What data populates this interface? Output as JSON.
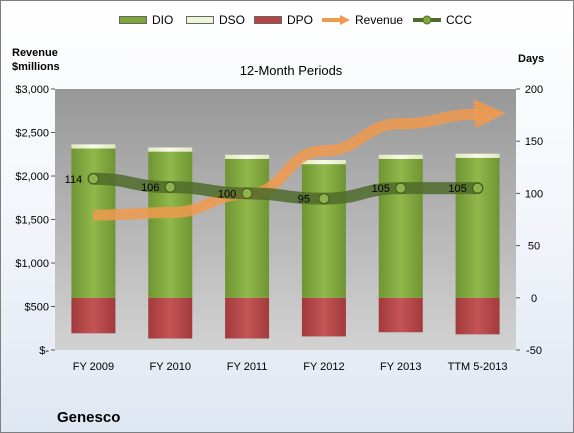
{
  "company": "Genesco",
  "chart_data": {
    "type": "bar",
    "title": "12-Month Periods",
    "left_axis_title": [
      "Revenue",
      "$millions"
    ],
    "right_axis_title": "Days",
    "categories": [
      "FY 2009",
      "FY 2010",
      "FY 2011",
      "FY 2012",
      "FY 2013",
      "TTM 5-2013"
    ],
    "left_ticks": [
      "$-",
      "$500",
      "$1,000",
      "$1,500",
      "$2,000",
      "$2,500",
      "$3,000"
    ],
    "right_ticks": [
      "-50",
      "0",
      "50",
      "100",
      "150",
      "200"
    ],
    "ylim_left": [
      0,
      3000
    ],
    "ylim_right": [
      -50,
      200
    ],
    "series": [
      {
        "name": "DIO",
        "axis": "right",
        "values": [
          143,
          140,
          133,
          128,
          133,
          134
        ],
        "color": "#7ea63a"
      },
      {
        "name": "DSO",
        "axis": "right",
        "values": [
          4,
          4,
          4,
          4,
          4,
          4
        ],
        "color": "#eef4d8"
      },
      {
        "name": "DPO",
        "axis": "right",
        "values": [
          -34,
          -39,
          -39,
          -37,
          -33,
          -35
        ],
        "color": "#b54446"
      },
      {
        "name": "Revenue",
        "axis": "left",
        "values": [
          1550,
          1580,
          1790,
          2290,
          2600,
          2710
        ],
        "color": "#f09a4e"
      },
      {
        "name": "CCC",
        "axis": "right",
        "values": [
          114,
          106,
          100,
          95,
          105,
          105
        ],
        "color": "#4f6b2a"
      }
    ],
    "data_labels": [
      "114",
      "106",
      "100",
      "95",
      "105",
      "105"
    ],
    "legend_position": "top",
    "grid": false
  }
}
